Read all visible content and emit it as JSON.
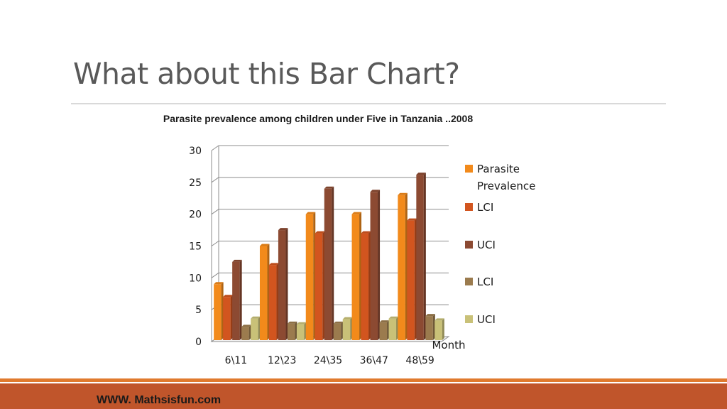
{
  "slide": {
    "title": "What about this Bar Chart?",
    "footer": "WWW. Mathsisfun.com"
  },
  "colors": {
    "accent_orange": "#e07a2e",
    "footer_bar": "#c0552b"
  },
  "chart_data": {
    "type": "bar",
    "style": "3d-clustered",
    "title": "Parasite prevalence among children under Five in Tanzania ..2008",
    "xlabel": "Month",
    "ylabel": "",
    "categories": [
      "6\\11",
      "12\\23",
      "24\\35",
      "36\\47",
      "48\\59"
    ],
    "ylim": [
      0,
      30
    ],
    "yticks": [
      0,
      5,
      10,
      15,
      20,
      25,
      30
    ],
    "grid": true,
    "legend_position": "right",
    "series": [
      {
        "name": "Parasite Prevalence",
        "color": "#f28a1b",
        "values": [
          9,
          15,
          20,
          20,
          23
        ]
      },
      {
        "name": "LCI",
        "color": "#d2551f",
        "values": [
          7,
          12,
          17,
          17,
          19
        ]
      },
      {
        "name": "UCI",
        "color": "#8c4a32",
        "values": [
          12.5,
          17.5,
          24,
          23.5,
          26.2
        ]
      },
      {
        "name": "LCI",
        "color": "#9b7b4e",
        "values": [
          2.3,
          2.8,
          2.8,
          3.0,
          4.0
        ]
      },
      {
        "name": "UCI",
        "color": "#c9c178",
        "values": [
          3.6,
          2.7,
          3.5,
          3.6,
          3.3
        ]
      }
    ]
  }
}
